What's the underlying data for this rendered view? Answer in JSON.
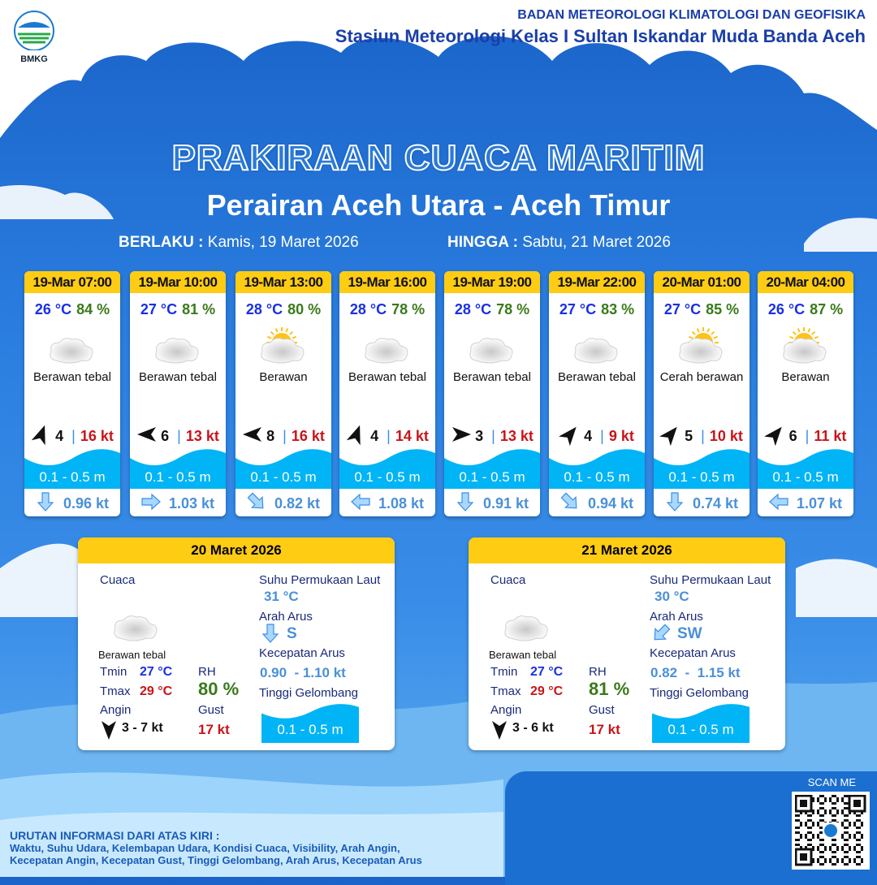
{
  "header": {
    "logo_text": "BMKG",
    "org": "BADAN METEOROLOGI KLIMATOLOGI DAN GEOFISIKA",
    "station": "Stasiun Meteorologi Kelas I Sultan Iskandar Muda Banda Aceh"
  },
  "title": "PRAKIRAAN CUACA MARITIM",
  "subtitle": "Perairan Aceh Utara - Aceh Timur",
  "validity": {
    "from_label": "BERLAKU :",
    "from": "Kamis, 19 Maret 2026",
    "to_label": "HINGGA :",
    "to": "Sabtu, 21 Maret 2026"
  },
  "colors": {
    "header_yellow": "#ffcc14",
    "temp": "#1a2ee8",
    "rh": "#3a7a1a",
    "gust": "#c8141a",
    "wave": "#00b4f5",
    "current": "#4a90d8"
  },
  "forecasts": [
    {
      "time": "19-Mar 07:00",
      "temp": "26 °C",
      "rh": "84 %",
      "icon": "cloudy-icon",
      "cond": "Berawan tebal",
      "wind_dir_deg": 20,
      "wind": "4",
      "gust": "16 kt",
      "wave": "0.1 - 0.5 m",
      "cur_dir_deg": 180,
      "cur": "0.96 kt"
    },
    {
      "time": "19-Mar 10:00",
      "temp": "27 °C",
      "rh": "81 %",
      "icon": "cloudy-icon",
      "cond": "Berawan tebal",
      "wind_dir_deg": 270,
      "wind": "6",
      "gust": "13 kt",
      "wave": "0.1 - 0.5 m",
      "cur_dir_deg": 90,
      "cur": "1.03 kt"
    },
    {
      "time": "19-Mar 13:00",
      "temp": "28 °C",
      "rh": "80 %",
      "icon": "partly-cloudy-icon",
      "cond": "Berawan",
      "wind_dir_deg": 270,
      "wind": "8",
      "gust": "16 kt",
      "wave": "0.1 - 0.5 m",
      "cur_dir_deg": 135,
      "cur": "0.82 kt"
    },
    {
      "time": "19-Mar 16:00",
      "temp": "28 °C",
      "rh": "78 %",
      "icon": "cloudy-icon",
      "cond": "Berawan tebal",
      "wind_dir_deg": 20,
      "wind": "4",
      "gust": "14 kt",
      "wave": "0.1 - 0.5 m",
      "cur_dir_deg": 270,
      "cur": "1.08 kt"
    },
    {
      "time": "19-Mar 19:00",
      "temp": "28 °C",
      "rh": "78 %",
      "icon": "cloudy-icon",
      "cond": "Berawan tebal",
      "wind_dir_deg": 90,
      "wind": "3",
      "gust": "13 kt",
      "wave": "0.1 - 0.5 m",
      "cur_dir_deg": 180,
      "cur": "0.91 kt"
    },
    {
      "time": "19-Mar 22:00",
      "temp": "27 °C",
      "rh": "83 %",
      "icon": "cloudy-icon",
      "cond": "Berawan tebal",
      "wind_dir_deg": 40,
      "wind": "4",
      "gust": "9 kt",
      "wave": "0.1 - 0.5 m",
      "cur_dir_deg": 135,
      "cur": "0.94 kt"
    },
    {
      "time": "20-Mar 01:00",
      "temp": "27 °C",
      "rh": "85 %",
      "icon": "sunny-cloudy-icon",
      "cond": "Cerah berawan",
      "wind_dir_deg": 40,
      "wind": "5",
      "gust": "10 kt",
      "wave": "0.1 - 0.5 m",
      "cur_dir_deg": 180,
      "cur": "0.74 kt"
    },
    {
      "time": "20-Mar 04:00",
      "temp": "26 °C",
      "rh": "87 %",
      "icon": "partly-cloudy-icon",
      "cond": "Berawan",
      "wind_dir_deg": 40,
      "wind": "6",
      "gust": "11 kt",
      "wave": "0.1 - 0.5 m",
      "cur_dir_deg": 270,
      "cur": "1.07 kt"
    }
  ],
  "labels": {
    "cuaca": "Cuaca",
    "tmin": "Tmin",
    "tmax": "Tmax",
    "rh": "RH",
    "angin": "Angin",
    "gust": "Gust",
    "sst": "Suhu Permukaan Laut",
    "arah": "Arah Arus",
    "kec": "Kecepatan Arus",
    "tinggi": "Tinggi Gelombang"
  },
  "days": [
    {
      "date": "20 Maret 2026",
      "cond": "Berawan tebal",
      "tmin": "27 °C",
      "tmax": "29 °C",
      "rh": "80 %",
      "wind": "3  - 7 kt",
      "gust": "17 kt",
      "sst": "31 °C",
      "cur_dir": "S",
      "cur_dir_deg": 180,
      "cur_speed": "0.90  - 1.10 kt",
      "wave": "0.1 - 0.5 m"
    },
    {
      "date": "21 Maret 2026",
      "cond": "Berawan tebal",
      "tmin": "27 °C",
      "tmax": "29 °C",
      "rh": "81 %",
      "wind": "3  - 6 kt",
      "gust": "17 kt",
      "sst": "30 °C",
      "cur_dir": "SW",
      "cur_dir_deg": 225,
      "cur_speed": "0.82  -  1.15 kt",
      "wave": "0.1 - 0.5 m"
    }
  ],
  "footer": {
    "heading": "URUTAN INFORMASI DARI ATAS KIRI :",
    "line1": "Waktu, Suhu Udara, Kelembapan Udara, Kondisi Cuaca, Visibility, Arah Angin,",
    "line2": "Kecepatan Angin, Kecepatan Gust, Tinggi Gelombang, Arah Arus, Kecepatan Arus",
    "scan": "SCAN ME"
  }
}
